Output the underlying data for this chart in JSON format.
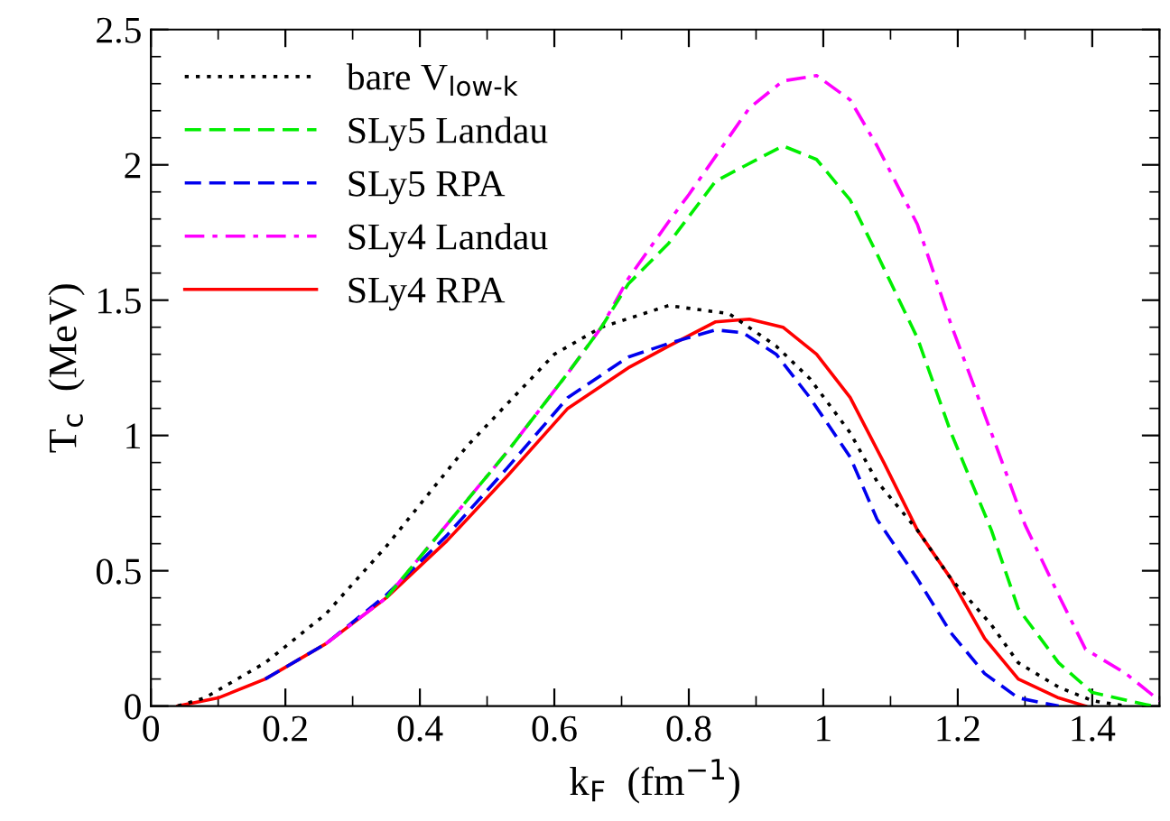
{
  "chart_data": {
    "type": "line",
    "xlabel": "k$_{F}$  (fm$^{−1}$)",
    "ylabel": "T$_{c}$  (MeV)",
    "xlim": [
      0,
      1.5
    ],
    "ylim": [
      0,
      2.5
    ],
    "xticks": [
      0,
      0.2,
      0.4,
      0.6,
      0.8,
      1,
      1.2,
      1.4
    ],
    "yticks": [
      0,
      0.5,
      1,
      1.5,
      2,
      2.5
    ],
    "grid": false,
    "legend": "top left",
    "marker": "none",
    "series": [
      {
        "name": "bare V$_{low-k}$",
        "color": "#000000",
        "line_style": "dotted",
        "x": [
          0.04,
          0.08,
          0.17,
          0.26,
          0.35,
          0.47,
          0.6,
          0.67,
          0.77,
          0.86,
          0.93,
          0.98,
          1.04,
          1.08,
          1.14,
          1.19,
          1.25,
          1.29,
          1.35,
          1.4,
          1.45
        ],
        "values": [
          0,
          0.03,
          0.16,
          0.34,
          0.59,
          0.96,
          1.3,
          1.4,
          1.48,
          1.45,
          1.33,
          1.21,
          1.01,
          0.83,
          0.65,
          0.47,
          0.3,
          0.16,
          0.07,
          0.02,
          0
        ]
      },
      {
        "name": "SLy5 Landau",
        "color": "#00ee00",
        "line_style": "dashed",
        "x": [
          0.35,
          0.44,
          0.53,
          0.62,
          0.67,
          0.71,
          0.77,
          0.84,
          0.94,
          0.99,
          1.04,
          1.08,
          1.14,
          1.19,
          1.25,
          1.29,
          1.35,
          1.4,
          1.49
        ],
        "values": [
          0.4,
          0.67,
          0.94,
          1.23,
          1.4,
          1.56,
          1.71,
          1.94,
          2.07,
          2.02,
          1.87,
          1.67,
          1.36,
          1.01,
          0.65,
          0.36,
          0.16,
          0.05,
          0
        ]
      },
      {
        "name": "SLy5 RPA",
        "color": "#0000ee",
        "line_style": "dashed",
        "x": [
          0.17,
          0.26,
          0.35,
          0.44,
          0.53,
          0.62,
          0.71,
          0.77,
          0.84,
          0.88,
          0.93,
          0.98,
          1.04,
          1.08,
          1.14,
          1.19,
          1.24,
          1.29,
          1.35
        ],
        "values": [
          0.1,
          0.23,
          0.41,
          0.63,
          0.88,
          1.14,
          1.29,
          1.34,
          1.39,
          1.38,
          1.3,
          1.14,
          0.92,
          0.69,
          0.47,
          0.27,
          0.12,
          0.03,
          0
        ]
      },
      {
        "name": "SLy4 Landau",
        "color": "#ff00ff",
        "line_style": "dashdot",
        "x": [
          0.26,
          0.35,
          0.44,
          0.53,
          0.62,
          0.67,
          0.71,
          0.77,
          0.8,
          0.89,
          0.94,
          0.99,
          1.04,
          1.08,
          1.14,
          1.19,
          1.25,
          1.3,
          1.35,
          1.39,
          1.45,
          1.5
        ],
        "values": [
          0.23,
          0.4,
          0.67,
          0.94,
          1.23,
          1.4,
          1.58,
          1.79,
          1.89,
          2.21,
          2.31,
          2.33,
          2.24,
          2.07,
          1.78,
          1.41,
          1.01,
          0.67,
          0.41,
          0.21,
          0.12,
          0.02
        ]
      },
      {
        "name": "SLy4 RPA",
        "color": "#ff0000",
        "line_style": "solid",
        "x": [
          0.04,
          0.1,
          0.17,
          0.26,
          0.35,
          0.44,
          0.53,
          0.62,
          0.71,
          0.77,
          0.84,
          0.89,
          0.94,
          0.99,
          1.04,
          1.09,
          1.14,
          1.19,
          1.24,
          1.29,
          1.35,
          1.39
        ],
        "values": [
          0,
          0.03,
          0.1,
          0.23,
          0.4,
          0.61,
          0.85,
          1.1,
          1.25,
          1.33,
          1.42,
          1.43,
          1.4,
          1.3,
          1.14,
          0.9,
          0.65,
          0.47,
          0.25,
          0.1,
          0.03,
          0
        ]
      }
    ]
  }
}
